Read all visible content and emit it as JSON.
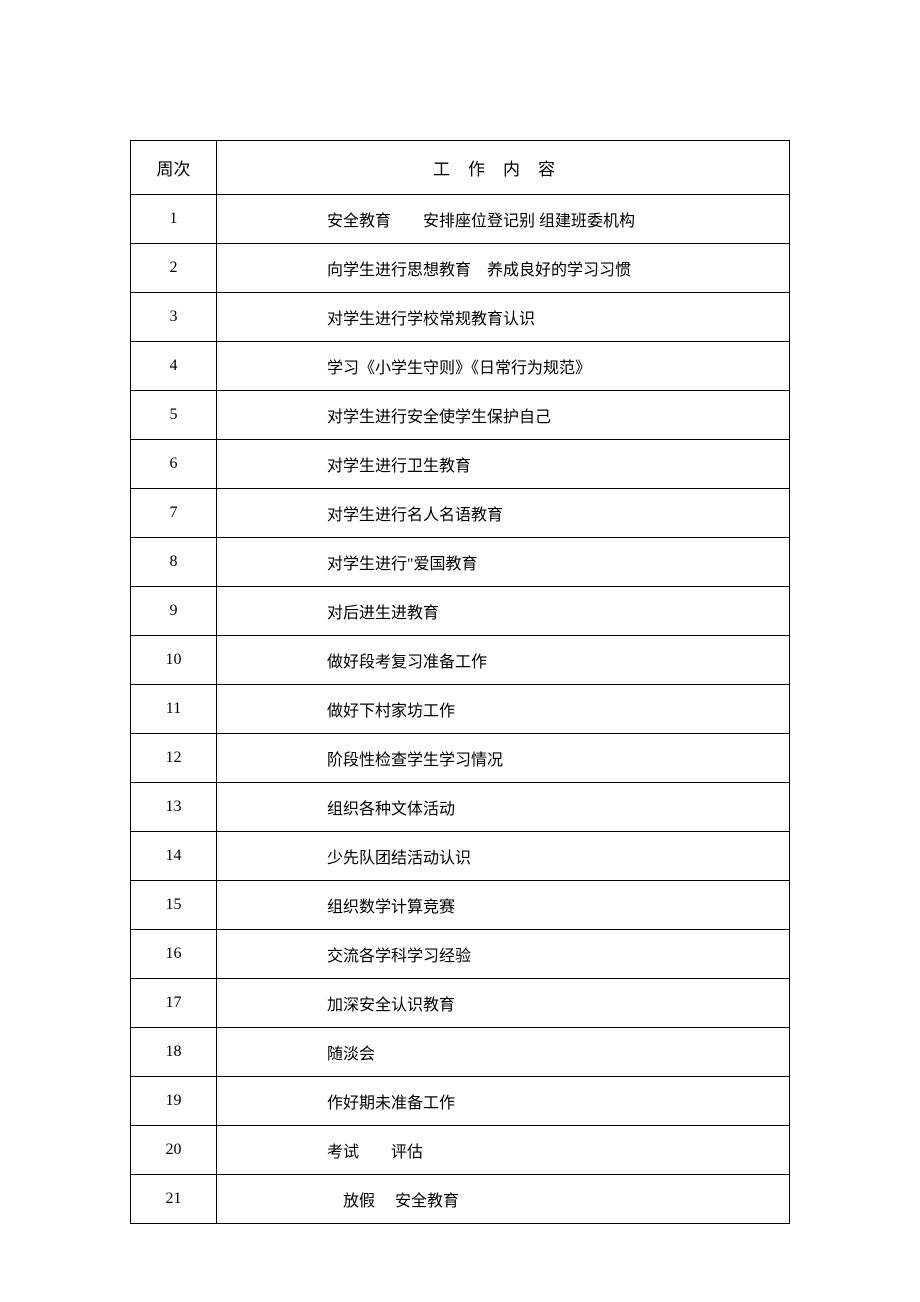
{
  "table": {
    "headers": {
      "week": "周次",
      "content": "工作内容"
    },
    "rows": [
      {
        "week": "1",
        "content": "安全教育　　安排座位登记别 组建班委机构"
      },
      {
        "week": "2",
        "content": "向学生进行思想教育　养成良好的学习习惯"
      },
      {
        "week": "3",
        "content": "对学生进行学校常规教育认识"
      },
      {
        "week": "4",
        "content": "学习《小学生守则》《日常行为规范》"
      },
      {
        "week": "5",
        "content": "对学生进行安全使学生保护自己"
      },
      {
        "week": "6",
        "content": "对学生进行卫生教育"
      },
      {
        "week": "7",
        "content": "对学生进行名人名语教育"
      },
      {
        "week": "8",
        "content": "对学生进行\"爱国教育"
      },
      {
        "week": "9",
        "content": "对后进生进教育"
      },
      {
        "week": "10",
        "content": "做好段考复习准备工作"
      },
      {
        "week": "11",
        "content": "做好下村家坊工作"
      },
      {
        "week": "12",
        "content": "阶段性检查学生学习情况"
      },
      {
        "week": "13",
        "content": "组织各种文体活动"
      },
      {
        "week": "14",
        "content": "少先队团结活动认识"
      },
      {
        "week": "15",
        "content": "组织数学计算竞赛"
      },
      {
        "week": "16",
        "content": "交流各学科学习经验"
      },
      {
        "week": "17",
        "content": "加深安全认识教育"
      },
      {
        "week": "18",
        "content": "随淡会"
      },
      {
        "week": "19",
        "content": "作好期未准备工作"
      },
      {
        "week": "20",
        "content": "考试　　评估"
      },
      {
        "week": "21",
        "content": "　放假　 安全教育"
      }
    ],
    "styling": {
      "border_color": "#000000",
      "background_color": "#ffffff",
      "font_family": "SimSun",
      "header_fontsize": 17,
      "cell_fontsize": 16,
      "week_column_width": 86,
      "row_padding": 12
    }
  }
}
